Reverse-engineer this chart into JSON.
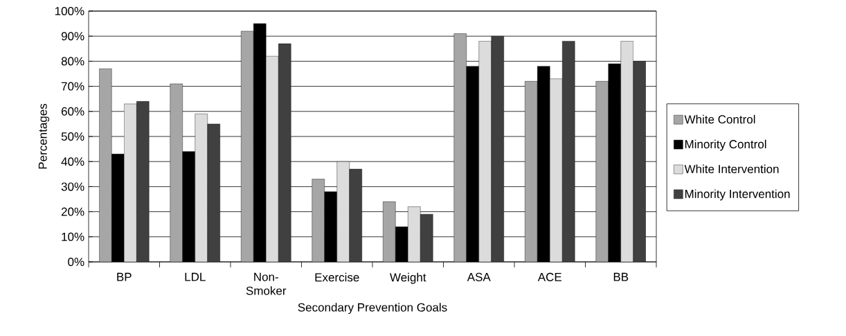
{
  "chart_data": {
    "type": "bar",
    "xlabel": "Secondary Prevention Goals",
    "ylabel": "Percentages",
    "categories": [
      "BP",
      "LDL",
      "Non-Smoker",
      "Exercise",
      "Weight",
      "ASA",
      "ACE",
      "BB"
    ],
    "series": [
      {
        "name": "White Control",
        "color": "#a6a6a6",
        "values": [
          77,
          71,
          92,
          33,
          24,
          91,
          72,
          72
        ]
      },
      {
        "name": "Minority Control",
        "color": "#000000",
        "values": [
          43,
          44,
          95,
          28,
          14,
          78,
          78,
          79
        ]
      },
      {
        "name": "White Intervention",
        "color": "#dcdcdc",
        "values": [
          63,
          59,
          82,
          40,
          22,
          88,
          73,
          88
        ]
      },
      {
        "name": "Minority Intervention",
        "color": "#404040",
        "values": [
          64,
          55,
          87,
          37,
          19,
          90,
          88,
          80
        ]
      }
    ],
    "ylim": [
      0,
      100
    ],
    "yticks": [
      {
        "value": 0,
        "label": "0%"
      },
      {
        "value": 10,
        "label": "10%"
      },
      {
        "value": 20,
        "label": "20%"
      },
      {
        "value": 30,
        "label": "30%"
      },
      {
        "value": 40,
        "label": "40%"
      },
      {
        "value": 50,
        "label": "50%"
      },
      {
        "value": 60,
        "label": "60%"
      },
      {
        "value": 70,
        "label": "70%"
      },
      {
        "value": 80,
        "label": "80%"
      },
      {
        "value": 90,
        "label": "90%"
      },
      {
        "value": 100,
        "label": "100%"
      }
    ],
    "grid": "y",
    "legend": "right"
  }
}
